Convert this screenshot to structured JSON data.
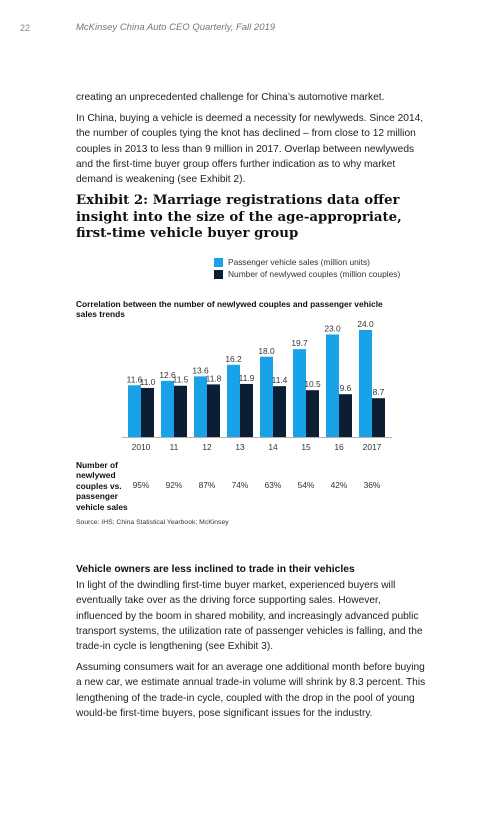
{
  "header": {
    "page_number": "22",
    "running_title": "McKinsey China Auto CEO Quarterly, Fall 2019"
  },
  "paragraphs": [
    "creating an unprecedented challenge for China’s automotive market.",
    "In China, buying a vehicle is deemed a necessity for newlyweds. Since 2014, the number of couples tying the knot has declined – from close to 12 million couples in 2013 to less than 9 million in 2017. Overlap between newlyweds and the first-time buyer group offers further indication as to why market demand is weakening (see Exhibit 2)."
  ],
  "exhibit": {
    "title": "Exhibit 2: Marriage registrations data offer insight into the size of the age-appropriate, first-time vehicle buyer group",
    "chart_subtitle": "Correlation between the number of newlywed couples and passenger vehicle sales trends",
    "ratio_label": "Number of newlywed couples vs. passenger vehicle sales",
    "ratios": [
      "95%",
      "92%",
      "87%",
      "74%",
      "63%",
      "54%",
      "42%",
      "36%"
    ],
    "source": "Source: IHS; China Statistical Yearbook; McKinsey"
  },
  "chart_data": {
    "type": "bar",
    "categories": [
      "2010",
      "11",
      "12",
      "13",
      "14",
      "15",
      "16",
      "2017"
    ],
    "series": [
      {
        "name": "Passenger vehicle sales (million units)",
        "color": "#1aa2e8",
        "values": [
          11.6,
          12.6,
          13.6,
          16.2,
          18.0,
          19.7,
          23.0,
          24.0
        ],
        "labels": [
          "11.6",
          "12.6",
          "13.6",
          "16.2",
          "18.0",
          "19.7",
          "23.0",
          "24.0"
        ]
      },
      {
        "name": "Number of newlywed couples (million couples)",
        "color": "#0b1e33",
        "values": [
          11.0,
          11.5,
          11.8,
          11.9,
          11.4,
          10.5,
          9.6,
          8.7
        ],
        "labels": [
          "11.0",
          "11.5",
          "11.8",
          "11.9",
          "11.4",
          "10.5",
          "9.6",
          "8.7"
        ]
      }
    ],
    "ylim": [
      0,
      24
    ],
    "legend": "top-right",
    "grid": false
  },
  "section": {
    "heading": "Vehicle owners are less inclined to trade in their vehicles",
    "paragraphs": [
      "In light of the dwindling first-time buyer market, experienced buyers will eventually take over as the driving force supporting sales. However, influenced by the boom in shared mobility, and increasingly advanced public transport systems, the utilization rate of passenger vehicles is falling, and the trade-in cycle is lengthening (see Exhibit 3).",
      "Assuming consumers wait for an average one additional month before buying a new car, we estimate annual trade-in volume will shrink by 8.3 percent. This lengthening of the trade-in cycle, coupled with the drop in the pool of young would-be first-time buyers, pose significant issues for the industry."
    ]
  }
}
